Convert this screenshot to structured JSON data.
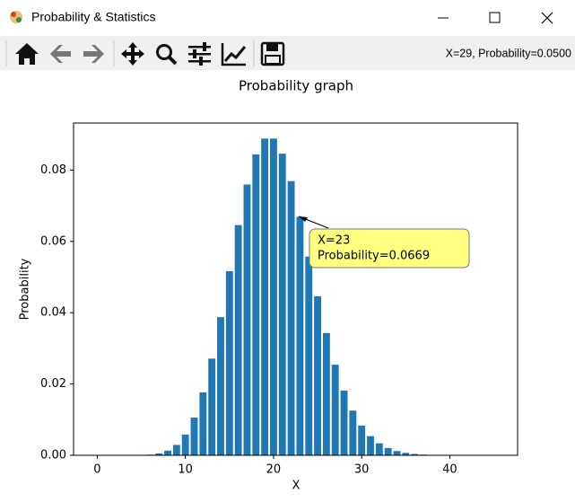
{
  "window": {
    "title": "Probability & Statistics",
    "status": "X=29, Probability=0.0500"
  },
  "chart_data": {
    "type": "bar",
    "title": "Probability graph",
    "x_label": "X",
    "y_label": "Probability",
    "color": "#1f77b4",
    "categories": [
      0,
      1,
      2,
      3,
      4,
      5,
      6,
      7,
      8,
      9,
      10,
      11,
      12,
      13,
      14,
      15,
      16,
      17,
      18,
      19,
      20,
      21,
      22,
      23,
      24,
      25,
      26,
      27,
      28,
      29,
      30,
      31,
      32,
      33,
      34,
      35,
      36,
      37,
      38,
      39,
      40,
      41,
      42,
      43,
      44,
      45
    ],
    "values": [
      0,
      0,
      4e-07,
      2.7e-06,
      1.37e-05,
      5.5e-05,
      0.000183,
      0.000524,
      0.00131,
      0.00291,
      0.00582,
      0.01058,
      0.01763,
      0.02712,
      0.03874,
      0.05165,
      0.06457,
      0.07596,
      0.0844,
      0.08884,
      0.08884,
      0.08461,
      0.07691,
      0.06688,
      0.05573,
      0.04459,
      0.0343,
      0.02541,
      0.01815,
      0.01252,
      0.00834,
      0.00538,
      0.00336,
      0.00204,
      0.0012,
      0.000686,
      0.000381,
      0.000206,
      0.000108,
      5.54e-05,
      2.77e-05,
      1.35e-05,
      6.4e-06,
      3e-06,
      1.4e-06,
      6e-07
    ],
    "xlim": [
      -2.69,
      47.69
    ],
    "xticks": [
      0,
      10,
      20,
      30,
      40
    ],
    "ylim": [
      0,
      0.0932
    ],
    "yticks": [
      {
        "value": 0,
        "label": "0.00"
      },
      0.02,
      0.04,
      0.06,
      0.08
    ],
    "annotation": [
      "X=23",
      "Probability=0.0669"
    ]
  }
}
